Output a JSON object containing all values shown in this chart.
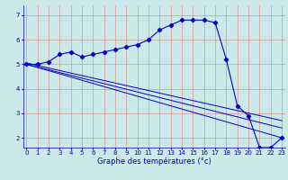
{
  "xlabel": "Graphe des températures (°c)",
  "bg_color": "#cce8e8",
  "grid_color": "#e08080",
  "line_color": "#0000cc",
  "x_ticks": [
    0,
    1,
    2,
    3,
    4,
    5,
    6,
    7,
    8,
    9,
    10,
    11,
    12,
    13,
    14,
    15,
    16,
    17,
    18,
    19,
    20,
    21,
    22,
    23
  ],
  "y_ticks": [
    2,
    3,
    4,
    5,
    6,
    7
  ],
  "ylim": [
    1.6,
    7.4
  ],
  "xlim": [
    -0.3,
    23.3
  ],
  "main_series_x": [
    0,
    1,
    2,
    3,
    4,
    5,
    6,
    7,
    8,
    9,
    10,
    11,
    12,
    13,
    14,
    15,
    16,
    17,
    18,
    19,
    20,
    21,
    22,
    23
  ],
  "main_series_y": [
    5.0,
    5.0,
    5.1,
    5.4,
    5.5,
    5.3,
    5.4,
    5.5,
    5.6,
    5.7,
    5.8,
    6.0,
    6.4,
    6.6,
    6.8,
    6.8,
    6.8,
    6.7,
    5.2,
    3.3,
    2.9,
    1.6,
    1.6,
    2.0
  ],
  "line2_x": [
    0,
    23
  ],
  "line2_y": [
    5.0,
    2.0
  ],
  "line3_x": [
    0,
    23
  ],
  "line3_y": [
    5.0,
    2.4
  ],
  "line4_x": [
    0,
    23
  ],
  "line4_y": [
    5.05,
    2.7
  ],
  "tick_labelsize": 5.0,
  "xlabel_fontsize": 6.0,
  "lw_main": 0.8,
  "lw_trend": 0.7,
  "marker_size": 2.2
}
